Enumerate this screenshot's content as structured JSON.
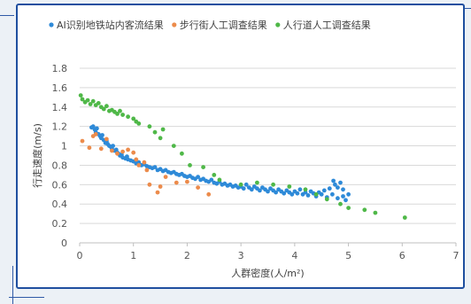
{
  "chart_data": {
    "type": "scatter",
    "title": "",
    "xlabel": "人群密度(人/m²)",
    "ylabel": "行走速度(m/s)",
    "xlim": [
      0,
      7
    ],
    "ylim": [
      0,
      1.8
    ],
    "xticks": [
      0,
      1,
      2,
      3,
      4,
      5,
      6,
      7
    ],
    "yticks": [
      0,
      0.2,
      0.4,
      0.6,
      0.8,
      1,
      1.2,
      1.4,
      1.6,
      1.8
    ],
    "x_tick_labels": [
      "0",
      "1",
      "2",
      "3",
      "4",
      "5",
      "6",
      "7"
    ],
    "y_tick_labels": [
      "0",
      "0.2",
      "0.4",
      "0.6",
      "0.8",
      "1",
      "1.2",
      "1.4",
      "1.6",
      "1.8"
    ],
    "grid": "horizontal",
    "legend_position": "top",
    "series": [
      {
        "name": "AI识别地铁站内客流结果",
        "color": "#2e8ad8",
        "points": [
          [
            0.22,
            1.19
          ],
          [
            0.25,
            1.2
          ],
          [
            0.28,
            1.17
          ],
          [
            0.3,
            1.14
          ],
          [
            0.32,
            1.18
          ],
          [
            0.35,
            1.12
          ],
          [
            0.38,
            1.1
          ],
          [
            0.4,
            1.08
          ],
          [
            0.42,
            1.11
          ],
          [
            0.45,
            1.06
          ],
          [
            0.48,
            1.03
          ],
          [
            0.5,
            1.05
          ],
          [
            0.52,
            1.02
          ],
          [
            0.55,
            1
          ],
          [
            0.58,
            0.99
          ],
          [
            0.6,
            0.97
          ],
          [
            0.62,
            1.0
          ],
          [
            0.65,
            0.95
          ],
          [
            0.68,
            0.96
          ],
          [
            0.7,
            0.93
          ],
          [
            0.72,
            0.92
          ],
          [
            0.75,
            0.9
          ],
          [
            0.78,
            0.91
          ],
          [
            0.8,
            0.88
          ],
          [
            0.85,
            0.87
          ],
          [
            0.88,
            0.89
          ],
          [
            0.9,
            0.86
          ],
          [
            0.95,
            0.85
          ],
          [
            1.0,
            0.84
          ],
          [
            1.05,
            0.82
          ],
          [
            1.1,
            0.83
          ],
          [
            1.15,
            0.8
          ],
          [
            1.2,
            0.81
          ],
          [
            1.25,
            0.79
          ],
          [
            1.3,
            0.78
          ],
          [
            1.35,
            0.77
          ],
          [
            1.4,
            0.78
          ],
          [
            1.45,
            0.75
          ],
          [
            1.5,
            0.76
          ],
          [
            1.55,
            0.74
          ],
          [
            1.6,
            0.75
          ],
          [
            1.65,
            0.73
          ],
          [
            1.7,
            0.72
          ],
          [
            1.75,
            0.73
          ],
          [
            1.8,
            0.71
          ],
          [
            1.85,
            0.7
          ],
          [
            1.9,
            0.71
          ],
          [
            1.95,
            0.69
          ],
          [
            2.0,
            0.68
          ],
          [
            2.05,
            0.69
          ],
          [
            2.1,
            0.67
          ],
          [
            2.15,
            0.66
          ],
          [
            2.2,
            0.68
          ],
          [
            2.25,
            0.65
          ],
          [
            2.3,
            0.66
          ],
          [
            2.35,
            0.64
          ],
          [
            2.4,
            0.63
          ],
          [
            2.45,
            0.65
          ],
          [
            2.5,
            0.62
          ],
          [
            2.55,
            0.61
          ],
          [
            2.6,
            0.63
          ],
          [
            2.65,
            0.6
          ],
          [
            2.7,
            0.61
          ],
          [
            2.75,
            0.59
          ],
          [
            2.8,
            0.6
          ],
          [
            2.85,
            0.58
          ],
          [
            2.9,
            0.59
          ],
          [
            2.95,
            0.57
          ],
          [
            3.0,
            0.58
          ],
          [
            3.05,
            0.56
          ],
          [
            3.1,
            0.6
          ],
          [
            3.15,
            0.57
          ],
          [
            3.2,
            0.55
          ],
          [
            3.25,
            0.58
          ],
          [
            3.3,
            0.56
          ],
          [
            3.35,
            0.54
          ],
          [
            3.4,
            0.57
          ],
          [
            3.45,
            0.55
          ],
          [
            3.5,
            0.53
          ],
          [
            3.55,
            0.56
          ],
          [
            3.6,
            0.54
          ],
          [
            3.65,
            0.52
          ],
          [
            3.7,
            0.55
          ],
          [
            3.75,
            0.53
          ],
          [
            3.8,
            0.51
          ],
          [
            3.85,
            0.54
          ],
          [
            3.9,
            0.52
          ],
          [
            3.95,
            0.5
          ],
          [
            4.0,
            0.53
          ],
          [
            4.05,
            0.51
          ],
          [
            4.1,
            0.55
          ],
          [
            4.15,
            0.5
          ],
          [
            4.2,
            0.52
          ],
          [
            4.25,
            0.49
          ],
          [
            4.3,
            0.53
          ],
          [
            4.35,
            0.51
          ],
          [
            4.4,
            0.48
          ],
          [
            4.45,
            0.52
          ],
          [
            4.5,
            0.5
          ],
          [
            4.55,
            0.54
          ],
          [
            4.6,
            0.47
          ],
          [
            4.65,
            0.56
          ],
          [
            4.7,
            0.5
          ],
          [
            4.75,
            0.6
          ],
          [
            4.8,
            0.46
          ],
          [
            4.85,
            0.62
          ],
          [
            4.9,
            0.48
          ],
          [
            4.95,
            0.44
          ],
          [
            4.72,
            0.64
          ],
          [
            4.8,
            0.57
          ],
          [
            4.9,
            0.55
          ],
          [
            5.0,
            0.5
          ]
        ]
      },
      {
        "name": "步行街人工调查结果",
        "color": "#ec8b4b",
        "points": [
          [
            0.05,
            1.05
          ],
          [
            0.18,
            0.98
          ],
          [
            0.25,
            1.1
          ],
          [
            0.3,
            1.12
          ],
          [
            0.4,
            0.97
          ],
          [
            0.5,
            1.07
          ],
          [
            0.6,
            0.95
          ],
          [
            0.7,
            0.92
          ],
          [
            0.8,
            0.94
          ],
          [
            0.9,
            0.96
          ],
          [
            1.0,
            0.93
          ],
          [
            1.05,
            0.86
          ],
          [
            1.1,
            0.8
          ],
          [
            1.2,
            0.83
          ],
          [
            1.25,
            0.75
          ],
          [
            1.3,
            0.6
          ],
          [
            1.45,
            0.52
          ],
          [
            1.5,
            0.58
          ],
          [
            1.6,
            0.68
          ],
          [
            1.8,
            0.62
          ],
          [
            2.0,
            0.63
          ],
          [
            2.2,
            0.57
          ],
          [
            2.4,
            0.5
          ]
        ]
      },
      {
        "name": "人行道人工调查结果",
        "color": "#4fb848",
        "points": [
          [
            0.02,
            1.52
          ],
          [
            0.05,
            1.48
          ],
          [
            0.1,
            1.45
          ],
          [
            0.15,
            1.47
          ],
          [
            0.2,
            1.43
          ],
          [
            0.25,
            1.46
          ],
          [
            0.3,
            1.42
          ],
          [
            0.35,
            1.44
          ],
          [
            0.4,
            1.4
          ],
          [
            0.45,
            1.38
          ],
          [
            0.5,
            1.41
          ],
          [
            0.55,
            1.36
          ],
          [
            0.6,
            1.37
          ],
          [
            0.65,
            1.35
          ],
          [
            0.7,
            1.33
          ],
          [
            0.75,
            1.36
          ],
          [
            0.8,
            1.32
          ],
          [
            0.9,
            1.3
          ],
          [
            1.0,
            1.28
          ],
          [
            1.05,
            1.25
          ],
          [
            1.1,
            1.23
          ],
          [
            1.3,
            1.2
          ],
          [
            1.4,
            1.14
          ],
          [
            1.5,
            1.08
          ],
          [
            1.55,
            1.17
          ],
          [
            1.75,
            1.0
          ],
          [
            1.9,
            0.92
          ],
          [
            2.05,
            0.8
          ],
          [
            2.3,
            0.78
          ],
          [
            2.5,
            0.7
          ],
          [
            2.6,
            0.65
          ],
          [
            3.0,
            0.6
          ],
          [
            3.3,
            0.62
          ],
          [
            3.6,
            0.6
          ],
          [
            3.9,
            0.58
          ],
          [
            4.2,
            0.55
          ],
          [
            4.4,
            0.5
          ],
          [
            4.6,
            0.45
          ],
          [
            4.85,
            0.4
          ],
          [
            5.0,
            0.36
          ],
          [
            5.3,
            0.34
          ],
          [
            5.5,
            0.31
          ],
          [
            6.05,
            0.26
          ]
        ]
      }
    ]
  }
}
